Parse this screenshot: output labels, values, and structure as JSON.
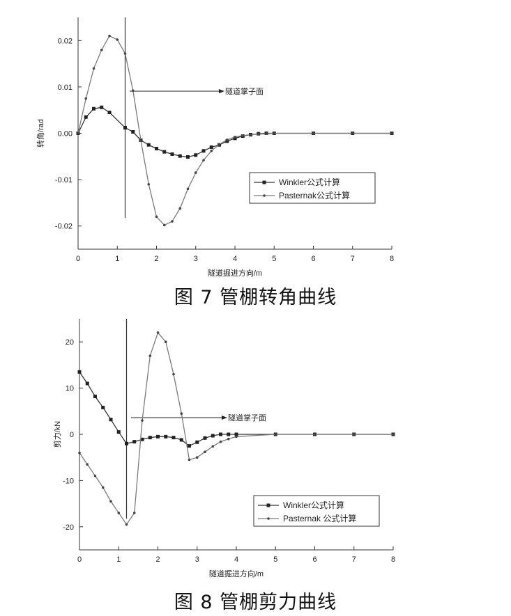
{
  "figures": [
    {
      "caption": "图 7   管棚转角曲线",
      "annotation": "隧道掌子面",
      "chart_data": {
        "type": "line",
        "xlabel": "隧道掘进方向/m",
        "ylabel": "转角/rad",
        "xlim": [
          0,
          8
        ],
        "ylim": [
          -0.025,
          0.025
        ],
        "xticks": [
          0,
          1,
          2,
          3,
          4,
          5,
          6,
          7,
          8
        ],
        "yticks": [
          -0.02,
          -0.01,
          0.0,
          0.01,
          0.02
        ],
        "ytick_labels": [
          "-0.02",
          "-0.01",
          "0.00",
          "0.01",
          "0.02"
        ],
        "face_x": 1.2,
        "legend_position": "right",
        "series": [
          {
            "name": "Winkler公式计算",
            "marker": "square",
            "x": [
              0,
              0.2,
              0.4,
              0.6,
              0.8,
              1.2,
              1.4,
              1.6,
              1.8,
              2.0,
              2.2,
              2.4,
              2.6,
              2.8,
              3.0,
              3.2,
              3.4,
              3.6,
              3.8,
              4.0,
              4.2,
              4.4,
              4.6,
              4.8,
              5.0,
              6.0,
              7.0,
              8.0
            ],
            "y": [
              0.0,
              0.0035,
              0.0053,
              0.0056,
              0.0045,
              0.0012,
              0.0003,
              -0.0015,
              -0.0025,
              -0.0033,
              -0.004,
              -0.0045,
              -0.0049,
              -0.0051,
              -0.0047,
              -0.0038,
              -0.003,
              -0.0025,
              -0.0017,
              -0.0011,
              -0.0006,
              -0.0003,
              -0.0001,
              0.0,
              0.0,
              0.0,
              0.0,
              0.0
            ]
          },
          {
            "name": "Pasternak公式计算",
            "marker": "dot",
            "x": [
              0,
              0.2,
              0.4,
              0.6,
              0.8,
              1.0,
              1.2,
              1.4,
              1.6,
              1.8,
              2.0,
              2.2,
              2.4,
              2.6,
              2.8,
              3.0,
              3.2,
              3.4,
              3.6,
              3.8,
              4.0,
              4.2,
              4.4,
              4.6,
              4.8,
              5.0,
              6.0,
              7.0,
              8.0
            ],
            "y": [
              0.0,
              0.0075,
              0.014,
              0.018,
              0.021,
              0.0202,
              0.0172,
              0.0092,
              -0.0015,
              -0.011,
              -0.018,
              -0.0198,
              -0.019,
              -0.0162,
              -0.012,
              -0.0085,
              -0.0058,
              -0.0038,
              -0.0024,
              -0.0014,
              -0.0008,
              -0.0005,
              -0.0003,
              -0.0002,
              -0.0001,
              0.0,
              0.0,
              0.0,
              0.0
            ]
          }
        ]
      }
    },
    {
      "caption": "图 8   管棚剪力曲线",
      "annotation": "隧道掌子面",
      "chart_data": {
        "type": "line",
        "xlabel": "隧道掘进方向/m",
        "ylabel": "剪力/kN",
        "xlim": [
          0,
          8
        ],
        "ylim": [
          -25,
          25
        ],
        "xticks": [
          0,
          1,
          2,
          3,
          4,
          5,
          6,
          7,
          8
        ],
        "yticks": [
          -20,
          -10,
          0,
          10,
          20
        ],
        "ytick_labels": [
          "-20",
          "-10",
          "0",
          "10",
          "20"
        ],
        "face_x": 1.2,
        "legend_position": "bottom-right",
        "series": [
          {
            "name": "Winkler公式计算",
            "marker": "square",
            "x": [
              0,
              0.2,
              0.4,
              0.6,
              0.8,
              1.0,
              1.2,
              1.4,
              1.6,
              1.8,
              2.0,
              2.2,
              2.4,
              2.6,
              2.8,
              3.0,
              3.2,
              3.4,
              3.6,
              3.8,
              4.0,
              5.0,
              6.0,
              7.0,
              8.0
            ],
            "y": [
              13.5,
              11.0,
              8.2,
              5.8,
              3.2,
              0.5,
              -2.0,
              -1.6,
              -1.1,
              -0.7,
              -0.5,
              -0.5,
              -0.7,
              -1.2,
              -2.5,
              -1.7,
              -0.8,
              -0.3,
              0.0,
              0.0,
              0.0,
              0.0,
              0.0,
              0.0,
              0.0
            ]
          },
          {
            "name": "Pasternak 公式计算",
            "marker": "dot",
            "x": [
              0,
              0.2,
              0.4,
              0.6,
              0.8,
              1.0,
              1.2,
              1.4,
              1.6,
              1.8,
              2.0,
              2.2,
              2.4,
              2.6,
              2.8,
              3.0,
              3.2,
              3.4,
              3.6,
              3.8,
              4.0,
              5.0,
              6.0,
              7.0,
              8.0
            ],
            "y": [
              -4.0,
              -6.5,
              -9.0,
              -11.5,
              -14.5,
              -17.0,
              -19.5,
              -17.0,
              3.0,
              17.0,
              22.0,
              20.0,
              13.0,
              4.5,
              -5.5,
              -5.0,
              -3.8,
              -2.6,
              -1.6,
              -1.0,
              -0.5,
              0.0,
              0.0,
              0.0,
              0.0
            ]
          }
        ]
      }
    }
  ]
}
